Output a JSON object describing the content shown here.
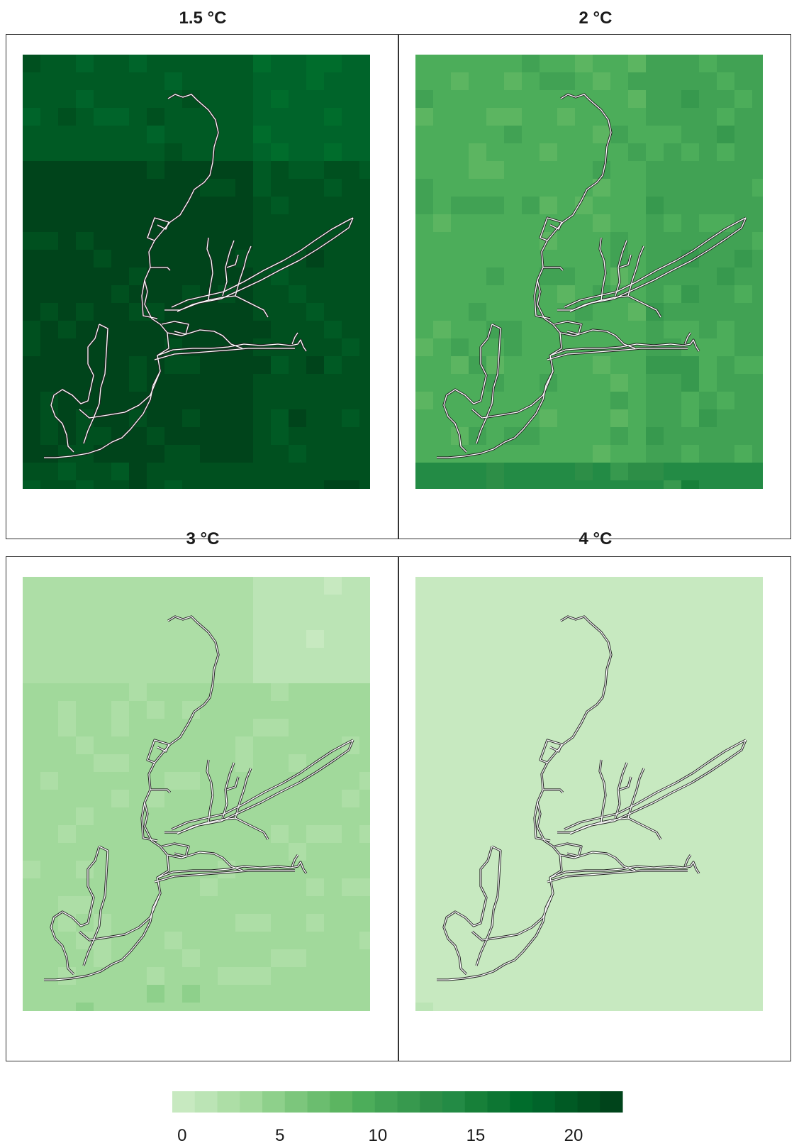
{
  "panels": [
    {
      "title": "1.5 °C",
      "base_value": 20.5,
      "quadrants": {
        "top_left": 19.5,
        "top_right": 18.0,
        "bottom_left": 21.5,
        "bottom_right": 20.5,
        "bottom_strip": 20.5
      },
      "noise": 1.2,
      "river_color": "#ffffff",
      "river_outline": "#222222"
    },
    {
      "title": "2 °C",
      "base_value": 10.0,
      "quadrants": {
        "top_left": 9.0,
        "top_right": 10.0,
        "bottom_left": 9.5,
        "bottom_right": 10.5,
        "bottom_strip": 13.5
      },
      "noise": 1.5,
      "river_color": "#ffffff",
      "river_outline": "#222222"
    },
    {
      "title": "3 °C",
      "base_value": 3.0,
      "quadrants": {
        "top_left": 2.5,
        "top_right": 1.0,
        "bottom_left": 3.0,
        "bottom_right": 3.0,
        "bottom_strip": 3.8
      },
      "noise": 0.4,
      "river_color": "#ffffff",
      "river_outline": "#222222"
    },
    {
      "title": "4 °C",
      "base_value": 0.3,
      "quadrants": {
        "top_left": 0.2,
        "top_right": 0.2,
        "bottom_left": 0.3,
        "bottom_right": 0.3,
        "bottom_strip": 0.5
      },
      "noise": 0.3,
      "river_color": "#ffffff",
      "river_outline": "#222222"
    }
  ],
  "legend": {
    "min": -0.5,
    "max": 22.5,
    "ticks": [
      {
        "value": 0,
        "label": "0"
      },
      {
        "value": 5,
        "label": "5"
      },
      {
        "value": 10,
        "label": "10"
      },
      {
        "value": 15,
        "label": "15"
      },
      {
        "value": 20,
        "label": "20"
      }
    ],
    "colors": [
      "#c7e9c0",
      "#bbe4b5",
      "#addea6",
      "#a1d99b",
      "#8ed08b",
      "#7cc67c",
      "#6bbd6f",
      "#5cb561",
      "#4cad5a",
      "#41a254",
      "#37994e",
      "#2d8e47",
      "#238b45",
      "#178039",
      "#0d7633",
      "#006d2c",
      "#00642a",
      "#005a24",
      "#00501f",
      "#00441b"
    ]
  }
}
